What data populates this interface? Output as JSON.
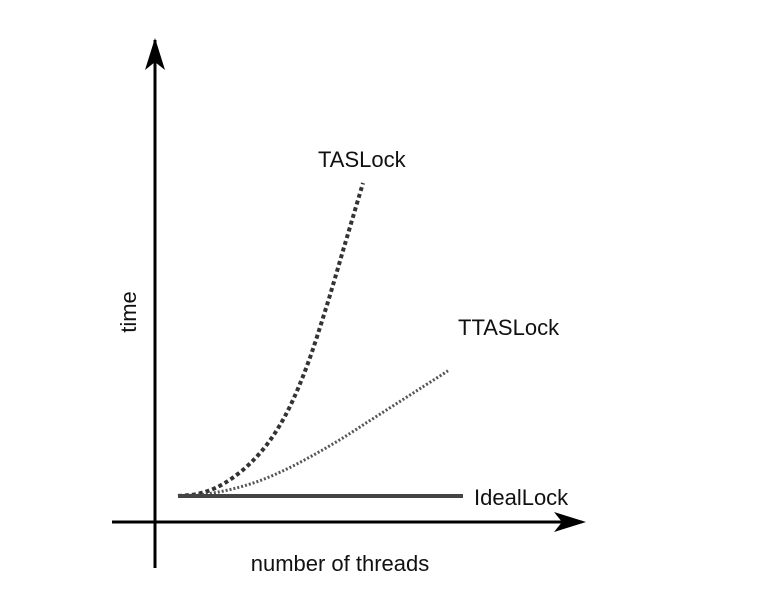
{
  "chart_data": {
    "type": "line",
    "title": "",
    "xlabel": "number of threads",
    "ylabel": "time",
    "grid": false,
    "legend": "none",
    "series": [
      {
        "name": "TASLock",
        "style": "dotted",
        "color": "#333333",
        "x": [
          0.0,
          0.1,
          0.2,
          0.3,
          0.4,
          0.5,
          0.6,
          0.7,
          0.8,
          0.9,
          1.0
        ],
        "y": [
          0.0,
          0.006,
          0.025,
          0.06,
          0.11,
          0.18,
          0.28,
          0.42,
          0.6,
          0.8,
          1.0
        ]
      },
      {
        "name": "TTASLock",
        "style": "fine-dotted",
        "color": "#555555",
        "x": [
          0.0,
          0.1,
          0.2,
          0.3,
          0.4,
          0.5,
          0.6,
          0.7,
          0.8,
          0.9,
          1.0
        ],
        "y": [
          0.0,
          0.006,
          0.022,
          0.048,
          0.085,
          0.13,
          0.18,
          0.235,
          0.29,
          0.345,
          0.4
        ]
      },
      {
        "name": "IdealLock",
        "style": "solid",
        "color": "#444444",
        "x": [
          0.0,
          1.0
        ],
        "y": [
          0.0,
          0.0
        ]
      }
    ]
  }
}
